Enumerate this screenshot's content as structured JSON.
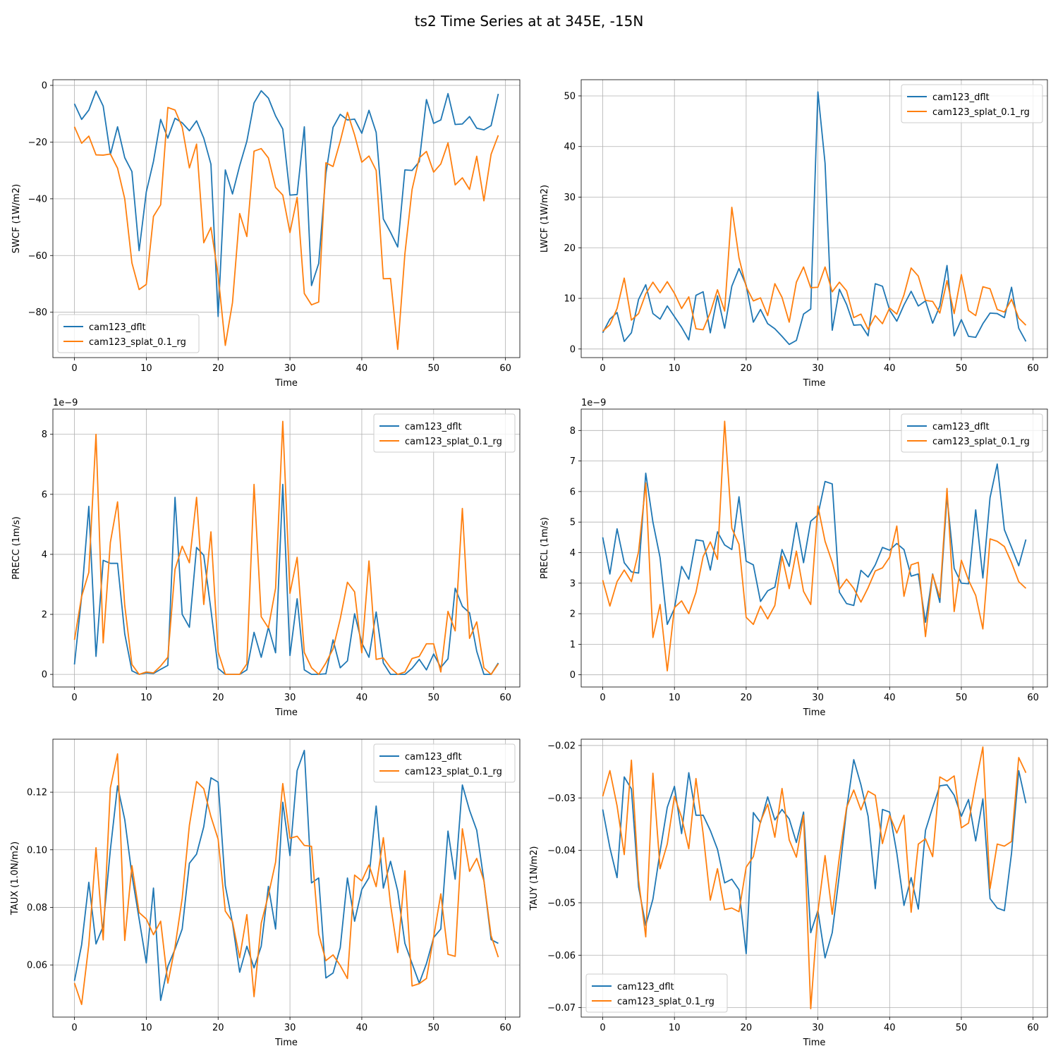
{
  "figure_title": "ts2 Time Series at at 345E, -15N",
  "colors": {
    "series1": "#1f77b4",
    "series2": "#ff7f0e"
  },
  "chart_data": [
    {
      "type": "line",
      "id": "swcf",
      "xlabel": "Time",
      "ylabel": "SWCF (1W/m2)",
      "xlim": [
        -3,
        62
      ],
      "ylim": [
        -96,
        2
      ],
      "xticks": [
        0,
        10,
        20,
        30,
        40,
        50,
        60
      ],
      "yticks": [
        -80,
        -60,
        -40,
        -20,
        0
      ],
      "ytick_labels": [
        "−80",
        "−60",
        "−40",
        "−20",
        "0"
      ],
      "legend_loc": "lower-left",
      "series": [
        {
          "name": "cam123_dflt",
          "values": [
            -6.5,
            -12,
            -8.7,
            -2,
            -7.3,
            -24.4,
            -14.6,
            -25.5,
            -30.4,
            -58.3,
            -37.6,
            -26.8,
            -12,
            -18.6,
            -11.6,
            -13.2,
            -16,
            -12.5,
            -18.6,
            -27.8,
            -81.5,
            -29.8,
            -38.3,
            -28.3,
            -19.7,
            -6.2,
            -1.9,
            -4.5,
            -10.8,
            -15.4,
            -38.7,
            -38.5,
            -14.6,
            -70.6,
            -62.8,
            -31.1,
            -14.8,
            -10.2,
            -12.2,
            -11.9,
            -16.9,
            -8.8,
            -16.6,
            -47.1,
            -51.8,
            -57,
            -29.8,
            -30,
            -26.9,
            -5,
            -13.4,
            -12.2,
            -2.9,
            -13.8,
            -13.6,
            -11,
            -15.1,
            -15.7,
            -14.2,
            -3
          ]
        },
        {
          "name": "cam123_splat_0.1_rg",
          "values": [
            -14.6,
            -20.4,
            -17.9,
            -24.5,
            -24.6,
            -24.2,
            -29.2,
            -40,
            -62.6,
            -72,
            -70.2,
            -46.2,
            -42.1,
            -7.8,
            -8.7,
            -14.7,
            -29.1,
            -20.7,
            -55.5,
            -50.1,
            -66.9,
            -91.7,
            -76.6,
            -45.2,
            -53.3,
            -23.2,
            -22.3,
            -25.6,
            -36,
            -38.7,
            -51.9,
            -39.5,
            -73.4,
            -77.4,
            -76.4,
            -27.3,
            -28.6,
            -19.7,
            -9.5,
            -17.5,
            -27.1,
            -24.9,
            -30,
            -68.2,
            -68.1,
            -93.1,
            -59.4,
            -36.7,
            -25.6,
            -23.3,
            -30.6,
            -27.7,
            -20.3,
            -35.1,
            -32.6,
            -36.7,
            -25,
            -40.7,
            -24.3,
            -17.6
          ]
        }
      ]
    },
    {
      "type": "line",
      "id": "lwcf",
      "xlabel": "Time",
      "ylabel": "LWCF (1W/m2)",
      "xlim": [
        -3,
        62
      ],
      "ylim": [
        -1.7,
        53.2
      ],
      "xticks": [
        0,
        10,
        20,
        30,
        40,
        50,
        60
      ],
      "yticks": [
        0,
        10,
        20,
        30,
        40,
        50
      ],
      "ytick_labels": [
        "0",
        "10",
        "20",
        "30",
        "40",
        "50"
      ],
      "legend_loc": "upper-right",
      "series": [
        {
          "name": "cam123_dflt",
          "values": [
            3.2,
            5.9,
            7.2,
            1.5,
            3.2,
            9.8,
            12.7,
            7,
            5.9,
            8.5,
            6.4,
            4.3,
            1.8,
            10.6,
            11.3,
            3.2,
            10.5,
            4.1,
            12.4,
            15.9,
            12.6,
            5.3,
            7.8,
            5,
            4,
            2.5,
            0.9,
            1.7,
            6.9,
            7.9,
            50.8,
            36.7,
            3.7,
            11.8,
            8.8,
            4.7,
            4.8,
            2.6,
            12.9,
            12.4,
            7.7,
            5.5,
            8.7,
            11.4,
            8.5,
            9.5,
            5.1,
            8.5,
            16.5,
            2.6,
            5.8,
            2.5,
            2.3,
            5,
            7.1,
            7,
            6.2,
            12.2,
            4.1,
            1.5
          ]
        },
        {
          "name": "cam123_splat_0.1_rg",
          "values": [
            3.5,
            4.8,
            8,
            14,
            5.7,
            7,
            10.9,
            13.2,
            11.1,
            13.3,
            11,
            8,
            10.3,
            4,
            3.8,
            7.2,
            11.7,
            7.5,
            28,
            18,
            12.3,
            9.5,
            10.1,
            6.6,
            12.9,
            10.2,
            5.3,
            13.2,
            16.2,
            12.1,
            12.2,
            16.2,
            11.3,
            13.2,
            11.5,
            6.2,
            6.9,
            3.9,
            6.6,
            5,
            8.1,
            6.9,
            10.7,
            16,
            14.4,
            9.6,
            9.4,
            7.1,
            13.5,
            7,
            14.7,
            7.6,
            6.6,
            12.3,
            11.9,
            7.8,
            7.3,
            9.8,
            6.1,
            4.7
          ]
        }
      ]
    },
    {
      "type": "line",
      "id": "precc",
      "xlabel": "Time",
      "ylabel": "PRECC (1m/s)",
      "scale_label": "1e−9",
      "xlim": [
        -3,
        62
      ],
      "ylim": [
        -0.42,
        8.84
      ],
      "xticks": [
        0,
        10,
        20,
        30,
        40,
        50,
        60
      ],
      "yticks": [
        0,
        2,
        4,
        6,
        8
      ],
      "ytick_labels": [
        "0",
        "2",
        "4",
        "6",
        "8"
      ],
      "legend_loc": "upper-right",
      "series": [
        {
          "name": "cam123_dflt",
          "values": [
            0.33,
            2.6,
            5.6,
            0.6,
            3.8,
            3.7,
            3.7,
            1.35,
            0.12,
            0,
            0.05,
            0.03,
            0.17,
            0.3,
            5.9,
            2,
            1.57,
            4.23,
            3.97,
            2.15,
            0.2,
            0,
            0,
            0,
            0.15,
            1.4,
            0.57,
            1.57,
            0.72,
            6.33,
            0.63,
            2.52,
            0.15,
            0,
            0,
            0.02,
            1.15,
            0.22,
            0.45,
            2.02,
            1.05,
            0.57,
            2.08,
            0.38,
            0,
            0,
            0,
            0.2,
            0.5,
            0.15,
            0.68,
            0.23,
            0.52,
            2.87,
            2.27,
            2.05,
            0.77,
            0,
            0,
            0.38
          ]
        },
        {
          "name": "cam123_splat_0.1_rg",
          "values": [
            1.15,
            2.6,
            3.4,
            8,
            1.05,
            4.4,
            5.75,
            2.3,
            0.33,
            0,
            0.08,
            0.05,
            0.28,
            0.57,
            3.5,
            4.27,
            3.72,
            5.9,
            2.33,
            4.75,
            0.75,
            0,
            0,
            0,
            0.35,
            6.33,
            1.92,
            1.55,
            2.87,
            8.43,
            2.7,
            3.9,
            0.73,
            0.22,
            0,
            0.38,
            0.85,
            1.85,
            3.07,
            2.75,
            0.72,
            3.78,
            0.5,
            0.55,
            0.22,
            0,
            0.08,
            0.53,
            0.6,
            1.02,
            1.02,
            0.08,
            2.1,
            1.45,
            5.53,
            1.2,
            1.75,
            0.22,
            0,
            0.35
          ]
        }
      ]
    },
    {
      "type": "line",
      "id": "precl",
      "xlabel": "Time",
      "ylabel": "PRECL (1m/s)",
      "scale_label": "1e−9",
      "xlim": [
        -3,
        62
      ],
      "ylim": [
        -0.4,
        8.7
      ],
      "xticks": [
        0,
        10,
        20,
        30,
        40,
        50,
        60
      ],
      "yticks": [
        0,
        1,
        2,
        3,
        4,
        5,
        6,
        7,
        8
      ],
      "ytick_labels": [
        "0",
        "1",
        "2",
        "3",
        "4",
        "5",
        "6",
        "7",
        "8"
      ],
      "legend_loc": "upper-right",
      "series": [
        {
          "name": "cam123_dflt",
          "values": [
            4.5,
            3.3,
            4.78,
            3.67,
            3.37,
            3.33,
            6.6,
            5,
            3.83,
            1.65,
            2.17,
            3.55,
            3.13,
            4.42,
            4.38,
            3.43,
            4.68,
            4.25,
            4.1,
            5.83,
            3.72,
            3.6,
            2.4,
            2.75,
            2.87,
            4.1,
            3.55,
            4.98,
            3.67,
            5.03,
            5.23,
            6.33,
            6.25,
            2.7,
            2.33,
            2.27,
            3.42,
            3.2,
            3.6,
            4.17,
            4.08,
            4.3,
            4.1,
            3.23,
            3.3,
            1.72,
            3.3,
            2.37,
            5.85,
            3.48,
            3,
            2.98,
            5.4,
            3.17,
            5.8,
            6.9,
            4.75,
            4.17,
            3.57,
            4.43
          ]
        },
        {
          "name": "cam123_splat_0.1_rg",
          "values": [
            3.1,
            2.25,
            3.05,
            3.43,
            3.05,
            4.03,
            6.28,
            1.22,
            2.3,
            0.13,
            2.2,
            2.42,
            2,
            2.7,
            3.87,
            4.35,
            3.78,
            8.3,
            4.8,
            4.27,
            1.88,
            1.65,
            2.25,
            1.83,
            2.27,
            3.88,
            2.82,
            4.05,
            2.73,
            2.3,
            5.53,
            4.37,
            3.68,
            2.8,
            3.13,
            2.83,
            2.38,
            2.85,
            3.4,
            3.5,
            3.85,
            4.87,
            2.57,
            3.6,
            3.68,
            1.25,
            3.28,
            2.53,
            6.1,
            2.07,
            3.75,
            3.1,
            2.6,
            1.5,
            4.45,
            4.37,
            4.2,
            3.67,
            3.05,
            2.83
          ]
        }
      ]
    },
    {
      "type": "line",
      "id": "taux",
      "xlabel": "Time",
      "ylabel": "TAUX (1.0N/m2)",
      "xlim": [
        -3,
        62
      ],
      "ylim": [
        0.0419,
        0.1384
      ],
      "xticks": [
        0,
        10,
        20,
        30,
        40,
        50,
        60
      ],
      "yticks": [
        0.06,
        0.08,
        0.1,
        0.12
      ],
      "ytick_labels": [
        "0.06",
        "0.08",
        "0.10",
        "0.12"
      ],
      "legend_loc": "upper-right",
      "series": [
        {
          "name": "cam123_dflt",
          "values": [
            0.0545,
            0.067,
            0.0887,
            0.0673,
            0.0735,
            0.1,
            0.1222,
            0.1105,
            0.0913,
            0.076,
            0.0607,
            0.0867,
            0.0477,
            0.0595,
            0.0655,
            0.0725,
            0.0953,
            0.0985,
            0.108,
            0.125,
            0.1235,
            0.0875,
            0.0745,
            0.0575,
            0.0665,
            0.059,
            0.0665,
            0.0873,
            0.0725,
            0.1165,
            0.098,
            0.1275,
            0.1345,
            0.0885,
            0.0902,
            0.0555,
            0.0572,
            0.066,
            0.0902,
            0.0752,
            0.0862,
            0.0903,
            0.1152,
            0.0867,
            0.096,
            0.0857,
            0.0675,
            0.0605,
            0.0537,
            0.0605,
            0.0695,
            0.0725,
            0.1065,
            0.0898,
            0.1225,
            0.1137,
            0.1068,
            0.0893,
            0.0688,
            0.0675
          ]
        },
        {
          "name": "cam123_splat_0.1_rg",
          "values": [
            0.0537,
            0.0463,
            0.067,
            0.1007,
            0.0687,
            0.1215,
            0.1333,
            0.0685,
            0.0945,
            0.0782,
            0.076,
            0.0705,
            0.0752,
            0.0537,
            0.0662,
            0.0832,
            0.1085,
            0.1237,
            0.1212,
            0.1115,
            0.1037,
            0.0787,
            0.075,
            0.0625,
            0.0775,
            0.049,
            0.0745,
            0.0843,
            0.0957,
            0.123,
            0.104,
            0.1047,
            0.1015,
            0.1012,
            0.0707,
            0.0615,
            0.0635,
            0.0598,
            0.0553,
            0.0912,
            0.0892,
            0.0947,
            0.0872,
            0.1042,
            0.081,
            0.0643,
            0.0927,
            0.0527,
            0.0535,
            0.0553,
            0.0697,
            0.0847,
            0.0637,
            0.063,
            0.1073,
            0.0925,
            0.097,
            0.0892,
            0.0702,
            0.0627
          ]
        }
      ]
    },
    {
      "type": "line",
      "id": "tauy",
      "xlabel": "Time",
      "ylabel": "TAUY (1N/m2)",
      "xlim": [
        -3,
        62
      ],
      "ylim": [
        -0.0718,
        -0.0188
      ],
      "xticks": [
        0,
        10,
        20,
        30,
        40,
        50,
        60
      ],
      "yticks": [
        -0.07,
        -0.06,
        -0.05,
        -0.04,
        -0.03,
        -0.02
      ],
      "ytick_labels": [
        "−0.07",
        "−0.06",
        "−0.05",
        "−0.04",
        "−0.03",
        "−0.02"
      ],
      "legend_loc": "lower-left",
      "series": [
        {
          "name": "cam123_dflt",
          "values": [
            -0.0322,
            -0.0395,
            -0.0452,
            -0.026,
            -0.0283,
            -0.047,
            -0.0543,
            -0.0493,
            -0.0402,
            -0.0318,
            -0.0278,
            -0.0368,
            -0.0252,
            -0.0333,
            -0.0333,
            -0.0362,
            -0.0398,
            -0.0462,
            -0.0455,
            -0.0475,
            -0.0597,
            -0.0328,
            -0.0347,
            -0.0298,
            -0.0342,
            -0.0322,
            -0.034,
            -0.0385,
            -0.0327,
            -0.0557,
            -0.0515,
            -0.0605,
            -0.0557,
            -0.0445,
            -0.0322,
            -0.0227,
            -0.0275,
            -0.0335,
            -0.0473,
            -0.0322,
            -0.0327,
            -0.0405,
            -0.0505,
            -0.0452,
            -0.0512,
            -0.0362,
            -0.0318,
            -0.0277,
            -0.0275,
            -0.0295,
            -0.0335,
            -0.0303,
            -0.0382,
            -0.0302,
            -0.0492,
            -0.051,
            -0.0515,
            -0.0405,
            -0.0248,
            -0.031
          ]
        },
        {
          "name": "cam123_splat_0.1_rg",
          "values": [
            -0.0297,
            -0.0248,
            -0.0315,
            -0.0408,
            -0.0228,
            -0.0457,
            -0.0565,
            -0.0253,
            -0.0435,
            -0.0388,
            -0.0297,
            -0.0337,
            -0.0397,
            -0.0263,
            -0.0368,
            -0.0495,
            -0.0435,
            -0.0513,
            -0.051,
            -0.0517,
            -0.0432,
            -0.0412,
            -0.0345,
            -0.0312,
            -0.0375,
            -0.0282,
            -0.038,
            -0.0413,
            -0.0333,
            -0.0702,
            -0.0517,
            -0.041,
            -0.0522,
            -0.0412,
            -0.0318,
            -0.0285,
            -0.0323,
            -0.0287,
            -0.0295,
            -0.0387,
            -0.0333,
            -0.0367,
            -0.0333,
            -0.0518,
            -0.0388,
            -0.0378,
            -0.0412,
            -0.026,
            -0.0268,
            -0.0258,
            -0.0357,
            -0.0348,
            -0.0272,
            -0.0203,
            -0.0473,
            -0.0388,
            -0.0392,
            -0.0383,
            -0.0223,
            -0.0252
          ]
        }
      ]
    }
  ]
}
